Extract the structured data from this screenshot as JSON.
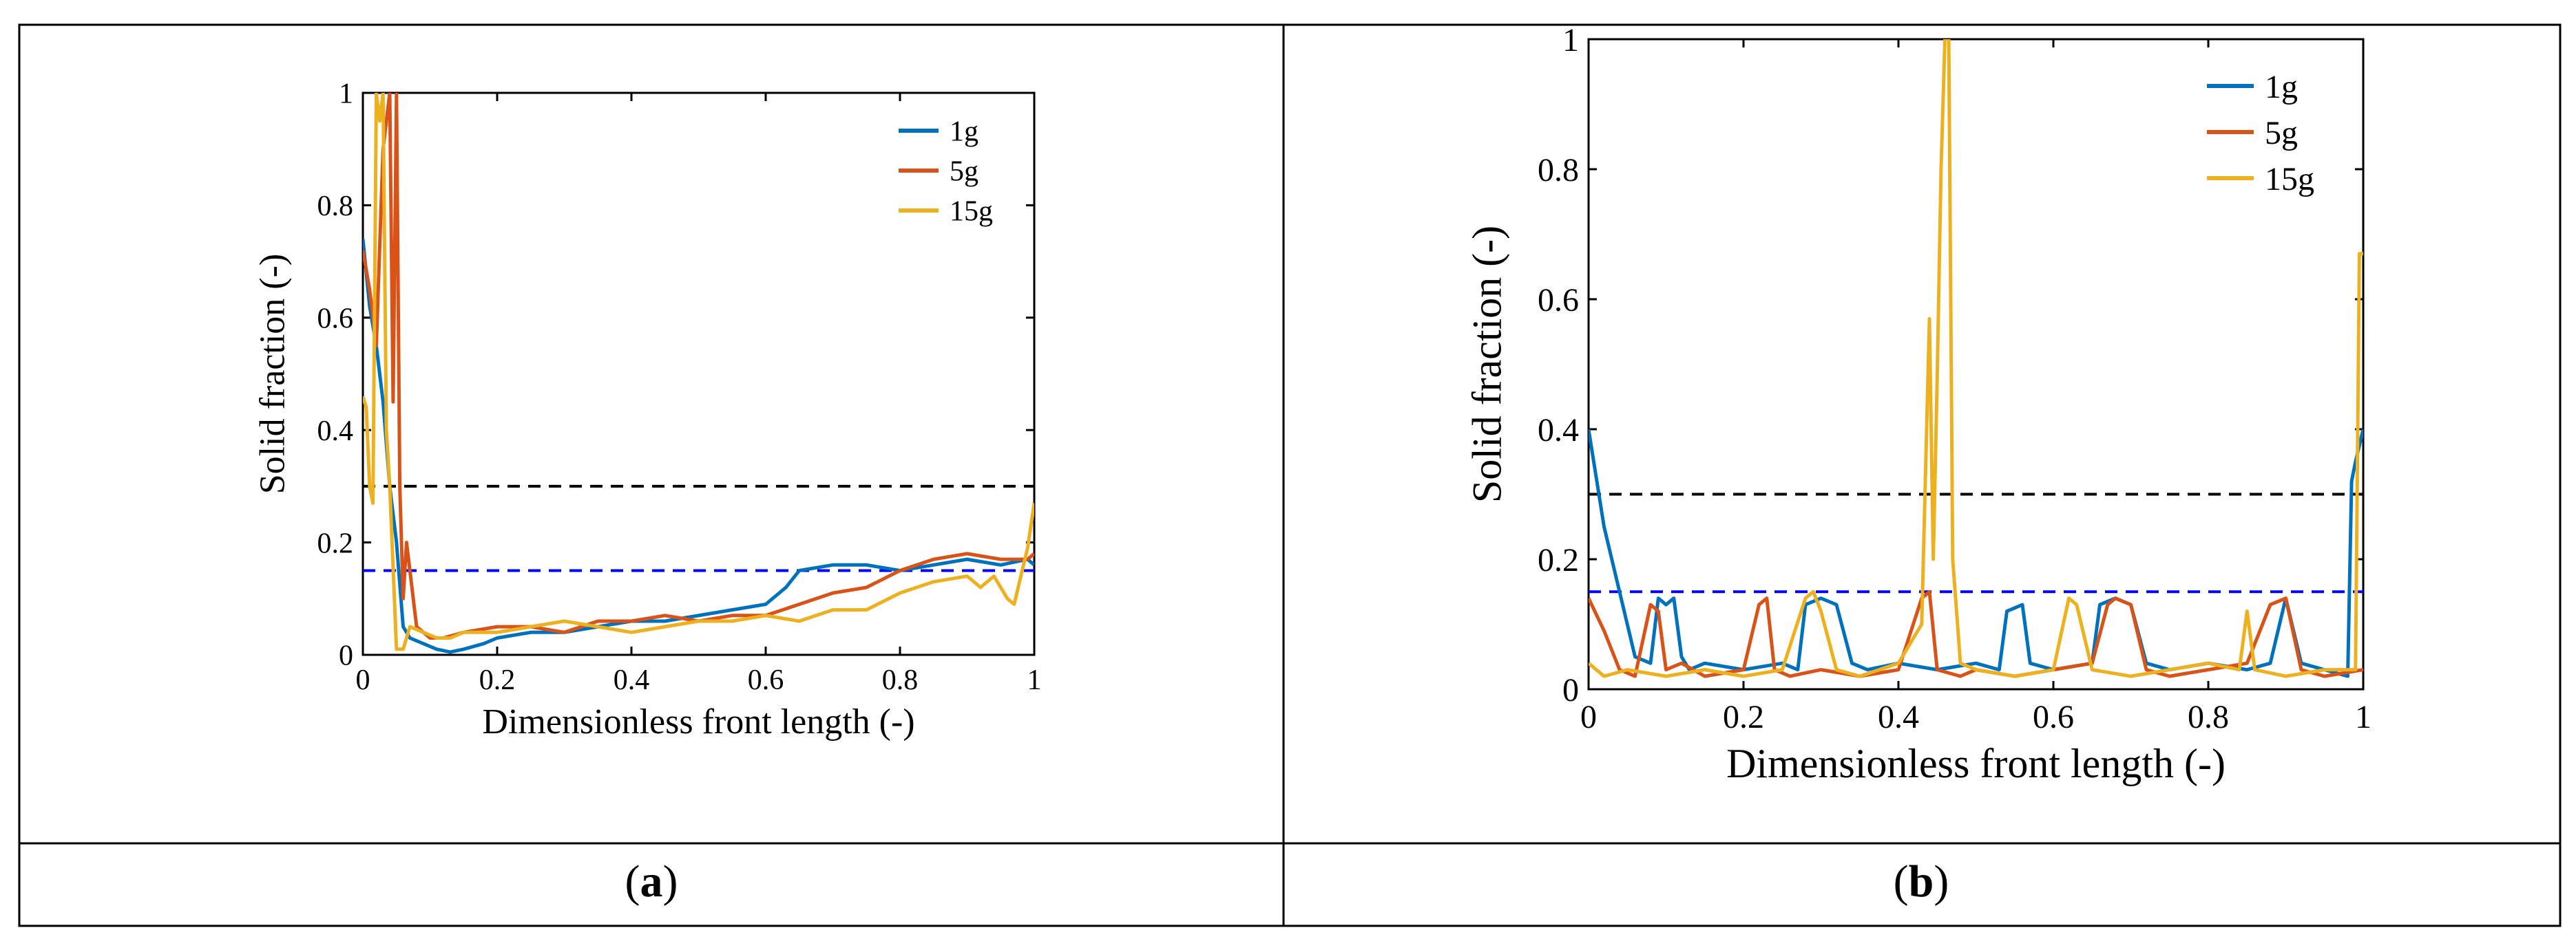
{
  "captions": {
    "a": {
      "open": "(",
      "letter": "a",
      "close": ")"
    },
    "b": {
      "open": "(",
      "letter": "b",
      "close": ")"
    }
  },
  "colors": {
    "blue": "#0072BD",
    "orange": "#D95319",
    "yellow": "#EDB120",
    "ref_black": "#000000",
    "ref_blue": "#0000FF"
  },
  "chart_data": [
    {
      "panel": "a",
      "type": "line",
      "xlabel": "Dimensionless front length (-)",
      "ylabel": "Solid fraction (-)",
      "xlim": [
        0,
        1
      ],
      "ylim": [
        0,
        1
      ],
      "xticks": [
        0,
        0.2,
        0.4,
        0.6,
        0.8,
        1
      ],
      "yticks": [
        0,
        0.2,
        0.4,
        0.6,
        0.8,
        1
      ],
      "xtick_labels": [
        "0",
        "0.2",
        "0.4",
        "0.6",
        "0.8",
        "1"
      ],
      "ytick_labels": [
        "0",
        "0.2",
        "0.4",
        "0.6",
        "0.8",
        "1"
      ],
      "legend_position": "top-right",
      "reference_lines": [
        {
          "y": 0.3,
          "color": "#000000",
          "style": "dashed"
        },
        {
          "y": 0.15,
          "color": "#0000FF",
          "style": "dashed"
        }
      ],
      "series": [
        {
          "name": "1g",
          "color": "#0072BD",
          "x": [
            0,
            0.01,
            0.02,
            0.03,
            0.04,
            0.05,
            0.06,
            0.07,
            0.09,
            0.11,
            0.13,
            0.15,
            0.18,
            0.2,
            0.25,
            0.3,
            0.35,
            0.4,
            0.45,
            0.5,
            0.55,
            0.6,
            0.63,
            0.65,
            0.7,
            0.75,
            0.8,
            0.85,
            0.9,
            0.95,
            0.99,
            1
          ],
          "y": [
            0.74,
            0.62,
            0.55,
            0.45,
            0.3,
            0.2,
            0.05,
            0.03,
            0.02,
            0.01,
            0.005,
            0.01,
            0.02,
            0.03,
            0.04,
            0.04,
            0.05,
            0.06,
            0.06,
            0.07,
            0.08,
            0.09,
            0.12,
            0.15,
            0.16,
            0.16,
            0.15,
            0.16,
            0.17,
            0.16,
            0.17,
            0.16
          ]
        },
        {
          "name": "5g",
          "color": "#D95319",
          "x": [
            0,
            0.01,
            0.02,
            0.03,
            0.04,
            0.045,
            0.05,
            0.055,
            0.06,
            0.065,
            0.08,
            0.1,
            0.12,
            0.15,
            0.2,
            0.25,
            0.3,
            0.35,
            0.4,
            0.45,
            0.5,
            0.55,
            0.6,
            0.65,
            0.7,
            0.75,
            0.8,
            0.85,
            0.9,
            0.95,
            0.99,
            1
          ],
          "y": [
            0.72,
            0.65,
            0.55,
            0.9,
            1,
            0.45,
            1,
            0.3,
            0.1,
            0.2,
            0.05,
            0.03,
            0.03,
            0.04,
            0.05,
            0.05,
            0.04,
            0.06,
            0.06,
            0.07,
            0.06,
            0.07,
            0.07,
            0.09,
            0.11,
            0.12,
            0.15,
            0.17,
            0.18,
            0.17,
            0.17,
            0.18
          ]
        },
        {
          "name": "15g",
          "color": "#EDB120",
          "x": [
            0,
            0.005,
            0.01,
            0.015,
            0.02,
            0.025,
            0.03,
            0.035,
            0.04,
            0.05,
            0.06,
            0.07,
            0.09,
            0.11,
            0.13,
            0.15,
            0.2,
            0.25,
            0.3,
            0.35,
            0.4,
            0.45,
            0.5,
            0.55,
            0.6,
            0.65,
            0.7,
            0.75,
            0.8,
            0.85,
            0.9,
            0.92,
            0.94,
            0.96,
            0.97,
            0.99,
            1
          ],
          "y": [
            0.46,
            0.44,
            0.3,
            0.27,
            1,
            0.95,
            1,
            0.4,
            0.3,
            0.01,
            0.01,
            0.05,
            0.04,
            0.03,
            0.03,
            0.04,
            0.04,
            0.05,
            0.06,
            0.05,
            0.04,
            0.05,
            0.06,
            0.06,
            0.07,
            0.06,
            0.08,
            0.08,
            0.11,
            0.13,
            0.14,
            0.12,
            0.14,
            0.1,
            0.09,
            0.19,
            0.27
          ]
        }
      ]
    },
    {
      "panel": "b",
      "type": "line",
      "xlabel": "Dimensionless front length (-)",
      "ylabel": "Solid fraction (-)",
      "xlim": [
        0,
        1
      ],
      "ylim": [
        0,
        1
      ],
      "xticks": [
        0,
        0.2,
        0.4,
        0.6,
        0.8,
        1
      ],
      "yticks": [
        0,
        0.2,
        0.4,
        0.6,
        0.8,
        1
      ],
      "xtick_labels": [
        "0",
        "0.2",
        "0.4",
        "0.6",
        "0.8",
        "1"
      ],
      "ytick_labels": [
        "0",
        "0.2",
        "0.4",
        "0.6",
        "0.8",
        "1"
      ],
      "legend_position": "top-right",
      "reference_lines": [
        {
          "y": 0.3,
          "color": "#000000",
          "style": "dashed"
        },
        {
          "y": 0.15,
          "color": "#0000FF",
          "style": "dashed"
        }
      ],
      "series": [
        {
          "name": "1g",
          "color": "#0072BD",
          "x": [
            0,
            0.02,
            0.04,
            0.06,
            0.08,
            0.09,
            0.1,
            0.11,
            0.12,
            0.13,
            0.15,
            0.2,
            0.25,
            0.27,
            0.28,
            0.3,
            0.32,
            0.34,
            0.36,
            0.4,
            0.45,
            0.5,
            0.53,
            0.54,
            0.56,
            0.57,
            0.6,
            0.65,
            0.66,
            0.68,
            0.7,
            0.72,
            0.75,
            0.8,
            0.85,
            0.88,
            0.9,
            0.92,
            0.95,
            0.98,
            0.985,
            0.99,
            1
          ],
          "y": [
            0.4,
            0.25,
            0.15,
            0.05,
            0.04,
            0.14,
            0.13,
            0.14,
            0.05,
            0.03,
            0.04,
            0.03,
            0.04,
            0.03,
            0.13,
            0.14,
            0.13,
            0.04,
            0.03,
            0.04,
            0.03,
            0.04,
            0.03,
            0.12,
            0.13,
            0.04,
            0.03,
            0.04,
            0.13,
            0.14,
            0.13,
            0.04,
            0.03,
            0.04,
            0.03,
            0.04,
            0.14,
            0.04,
            0.03,
            0.02,
            0.32,
            0.35,
            0.4
          ]
        },
        {
          "name": "5g",
          "color": "#D95319",
          "x": [
            0,
            0.02,
            0.04,
            0.06,
            0.08,
            0.09,
            0.1,
            0.12,
            0.15,
            0.2,
            0.22,
            0.23,
            0.24,
            0.26,
            0.3,
            0.35,
            0.4,
            0.43,
            0.44,
            0.45,
            0.48,
            0.5,
            0.55,
            0.6,
            0.65,
            0.67,
            0.68,
            0.7,
            0.72,
            0.75,
            0.8,
            0.85,
            0.88,
            0.9,
            0.92,
            0.95,
            1
          ],
          "y": [
            0.14,
            0.09,
            0.03,
            0.02,
            0.13,
            0.12,
            0.03,
            0.04,
            0.02,
            0.03,
            0.13,
            0.14,
            0.03,
            0.02,
            0.03,
            0.02,
            0.03,
            0.14,
            0.15,
            0.03,
            0.02,
            0.03,
            0.02,
            0.03,
            0.04,
            0.13,
            0.14,
            0.13,
            0.03,
            0.02,
            0.03,
            0.04,
            0.13,
            0.14,
            0.03,
            0.02,
            0.03
          ]
        },
        {
          "name": "15g",
          "color": "#EDB120",
          "x": [
            0,
            0.02,
            0.05,
            0.1,
            0.15,
            0.2,
            0.25,
            0.28,
            0.29,
            0.3,
            0.32,
            0.35,
            0.4,
            0.43,
            0.44,
            0.445,
            0.45,
            0.455,
            0.46,
            0.465,
            0.47,
            0.48,
            0.5,
            0.55,
            0.6,
            0.62,
            0.63,
            0.65,
            0.7,
            0.75,
            0.8,
            0.84,
            0.85,
            0.86,
            0.9,
            0.95,
            0.99,
            0.995,
            1
          ],
          "y": [
            0.04,
            0.02,
            0.03,
            0.02,
            0.03,
            0.02,
            0.03,
            0.14,
            0.15,
            0.12,
            0.03,
            0.02,
            0.04,
            0.1,
            0.57,
            0.2,
            0.48,
            0.8,
            1,
            1,
            0.2,
            0.04,
            0.03,
            0.02,
            0.03,
            0.14,
            0.13,
            0.03,
            0.02,
            0.03,
            0.04,
            0.03,
            0.12,
            0.03,
            0.02,
            0.03,
            0.03,
            0.67,
            0.67
          ]
        }
      ]
    }
  ]
}
